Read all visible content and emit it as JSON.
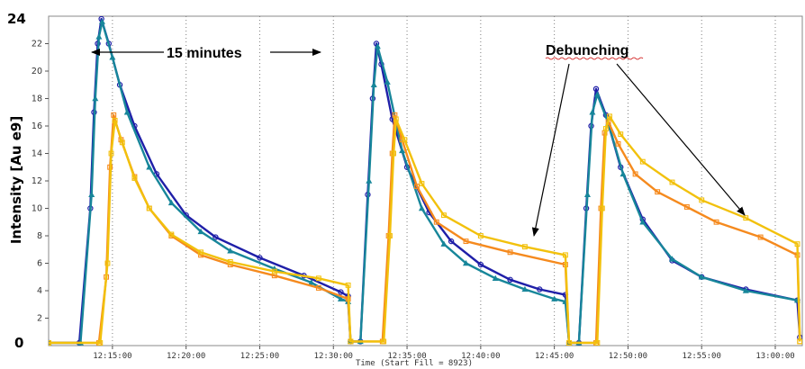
{
  "chart_data": {
    "type": "line",
    "title": "",
    "xlabel": "Time (Start Fill = 8923)",
    "ylabel": "Intensity [Au e9]",
    "x_tick_labels": [
      "12:15:00",
      "12:20:00",
      "12:25:00",
      "12:30:00",
      "12:35:00",
      "12:40:00",
      "12:45:00",
      "12:50:00",
      "12:55:00",
      "13:00:00"
    ],
    "y_tick_labels": [
      "2",
      "4",
      "6",
      "8",
      "10",
      "12",
      "14",
      "16",
      "18",
      "20",
      "22"
    ],
    "y_end_labels": {
      "bottom": "0",
      "top": "24"
    },
    "xlim": [
      "12:10:40",
      "13:01:50"
    ],
    "ylim": [
      0,
      24
    ],
    "grid": {
      "x": true,
      "y": false
    },
    "annotations": {
      "interval": "15 minutes",
      "debunching": "Debunching"
    },
    "colors": {
      "navy": "#1f1fa8",
      "teal": "#17869a",
      "orange": "#f58a1e",
      "yellow": "#f2c10c"
    },
    "series": [
      {
        "color": "#1f1fa8",
        "marker": "circle",
        "points": [
          [
            "12:10:40",
            0.2
          ],
          [
            "12:12:45",
            0.2
          ],
          [
            "12:13:30",
            10
          ],
          [
            "12:13:45",
            17
          ],
          [
            "12:14:00",
            22
          ],
          [
            "12:14:15",
            23.8
          ],
          [
            "12:14:45",
            22
          ],
          [
            "12:15:30",
            19
          ],
          [
            "12:16:30",
            16
          ],
          [
            "12:18:00",
            12.5
          ],
          [
            "12:20:00",
            9.5
          ],
          [
            "12:22:00",
            7.9
          ],
          [
            "12:25:00",
            6.4
          ],
          [
            "12:28:00",
            5.1
          ],
          [
            "12:30:30",
            3.9
          ],
          [
            "12:31:00",
            3.6
          ],
          [
            "12:31:10",
            0.3
          ],
          [
            "12:31:50",
            0.3
          ],
          [
            "12:32:20",
            11
          ],
          [
            "12:32:40",
            18
          ],
          [
            "12:32:55",
            22
          ],
          [
            "12:33:15",
            20.5
          ],
          [
            "12:34:00",
            16.5
          ],
          [
            "12:35:00",
            13
          ],
          [
            "12:36:30",
            9.7
          ],
          [
            "12:38:00",
            7.6
          ],
          [
            "12:40:00",
            5.9
          ],
          [
            "12:42:00",
            4.8
          ],
          [
            "12:44:00",
            4.1
          ],
          [
            "12:45:45",
            3.7
          ],
          [
            "12:46:00",
            0.2
          ],
          [
            "12:46:40",
            0.2
          ],
          [
            "12:47:10",
            10
          ],
          [
            "12:47:30",
            16
          ],
          [
            "12:47:50",
            18.7
          ],
          [
            "12:48:30",
            16.8
          ],
          [
            "12:49:30",
            13
          ],
          [
            "12:51:00",
            9.2
          ],
          [
            "12:53:00",
            6.2
          ],
          [
            "12:55:00",
            5.0
          ],
          [
            "12:58:00",
            4.1
          ],
          [
            "13:01:30",
            3.3
          ],
          [
            "13:01:40",
            0.6
          ]
        ]
      },
      {
        "color": "#17869a",
        "marker": "triangle",
        "points": [
          [
            "12:10:40",
            0.2
          ],
          [
            "12:12:50",
            0.2
          ],
          [
            "12:13:35",
            11
          ],
          [
            "12:13:50",
            18
          ],
          [
            "12:14:05",
            22.5
          ],
          [
            "12:14:18",
            23.6
          ],
          [
            "12:15:00",
            21
          ],
          [
            "12:16:00",
            17
          ],
          [
            "12:17:30",
            13
          ],
          [
            "12:19:00",
            10.4
          ],
          [
            "12:21:00",
            8.3
          ],
          [
            "12:23:00",
            6.9
          ],
          [
            "12:26:00",
            5.6
          ],
          [
            "12:28:30",
            4.6
          ],
          [
            "12:30:30",
            3.4
          ],
          [
            "12:31:00",
            3.2
          ],
          [
            "12:31:10",
            0.3
          ],
          [
            "12:31:50",
            0.3
          ],
          [
            "12:32:25",
            12
          ],
          [
            "12:32:45",
            19
          ],
          [
            "12:33:00",
            21.8
          ],
          [
            "12:33:40",
            19.2
          ],
          [
            "12:34:40",
            14.2
          ],
          [
            "12:36:00",
            10
          ],
          [
            "12:37:30",
            7.4
          ],
          [
            "12:39:00",
            6.0
          ],
          [
            "12:41:00",
            4.9
          ],
          [
            "12:43:00",
            4.1
          ],
          [
            "12:45:00",
            3.4
          ],
          [
            "12:45:45",
            3.2
          ],
          [
            "12:46:00",
            0.2
          ],
          [
            "12:46:40",
            0.2
          ],
          [
            "12:47:15",
            11
          ],
          [
            "12:47:35",
            17
          ],
          [
            "12:47:55",
            18.3
          ],
          [
            "12:48:40",
            16.2
          ],
          [
            "12:49:40",
            12.5
          ],
          [
            "12:51:00",
            9.0
          ],
          [
            "12:53:00",
            6.3
          ],
          [
            "12:55:00",
            5.0
          ],
          [
            "12:58:00",
            4.0
          ],
          [
            "13:01:30",
            3.3
          ]
        ]
      },
      {
        "color": "#f58a1e",
        "marker": "square",
        "points": [
          [
            "12:10:40",
            0.2
          ],
          [
            "12:14:05",
            0.2
          ],
          [
            "12:14:35",
            5
          ],
          [
            "12:14:50",
            13
          ],
          [
            "12:15:05",
            16.8
          ],
          [
            "12:15:35",
            15
          ],
          [
            "12:16:30",
            12.3
          ],
          [
            "12:17:30",
            10
          ],
          [
            "12:19:00",
            8.0
          ],
          [
            "12:21:00",
            6.6
          ],
          [
            "12:23:00",
            5.9
          ],
          [
            "12:26:00",
            5.1
          ],
          [
            "12:29:00",
            4.2
          ],
          [
            "12:31:00",
            3.4
          ],
          [
            "12:31:10",
            0.3
          ],
          [
            "12:33:20",
            0.3
          ],
          [
            "12:33:45",
            8
          ],
          [
            "12:34:00",
            14
          ],
          [
            "12:34:10",
            16.8
          ],
          [
            "12:34:40",
            15
          ],
          [
            "12:35:40",
            11.6
          ],
          [
            "12:37:00",
            9.0
          ],
          [
            "12:39:00",
            7.6
          ],
          [
            "12:42:00",
            6.8
          ],
          [
            "12:45:45",
            5.9
          ],
          [
            "12:46:00",
            0.2
          ],
          [
            "12:47:50",
            0.2
          ],
          [
            "12:48:10",
            10
          ],
          [
            "12:48:25",
            15.5
          ],
          [
            "12:48:40",
            16.3
          ],
          [
            "12:49:20",
            14.7
          ],
          [
            "12:50:30",
            12.5
          ],
          [
            "12:52:00",
            11.2
          ],
          [
            "12:54:00",
            10.1
          ],
          [
            "12:56:00",
            9.0
          ],
          [
            "12:59:00",
            7.9
          ],
          [
            "13:01:30",
            6.6
          ],
          [
            "13:01:40",
            0.3
          ]
        ]
      },
      {
        "color": "#f2c10c",
        "marker": "square",
        "points": [
          [
            "12:10:40",
            0.2
          ],
          [
            "12:14:10",
            0.2
          ],
          [
            "12:14:40",
            6
          ],
          [
            "12:14:55",
            14
          ],
          [
            "12:15:10",
            16.4
          ],
          [
            "12:15:40",
            14.8
          ],
          [
            "12:16:30",
            12.2
          ],
          [
            "12:17:30",
            10
          ],
          [
            "12:19:00",
            8.1
          ],
          [
            "12:21:00",
            6.8
          ],
          [
            "12:23:00",
            6.1
          ],
          [
            "12:26:00",
            5.4
          ],
          [
            "12:29:00",
            4.9
          ],
          [
            "12:31:00",
            4.4
          ],
          [
            "12:31:10",
            0.3
          ],
          [
            "12:33:25",
            0.3
          ],
          [
            "12:33:50",
            8
          ],
          [
            "12:34:05",
            14
          ],
          [
            "12:34:15",
            16.5
          ],
          [
            "12:34:50",
            15
          ],
          [
            "12:36:00",
            11.8
          ],
          [
            "12:37:30",
            9.5
          ],
          [
            "12:40:00",
            8.0
          ],
          [
            "12:43:00",
            7.2
          ],
          [
            "12:45:45",
            6.6
          ],
          [
            "12:46:00",
            0.2
          ],
          [
            "12:47:55",
            0.2
          ],
          [
            "12:48:15",
            10
          ],
          [
            "12:48:30",
            15.8
          ],
          [
            "12:48:45",
            16.7
          ],
          [
            "12:49:30",
            15.4
          ],
          [
            "12:51:00",
            13.4
          ],
          [
            "12:53:00",
            11.9
          ],
          [
            "12:55:00",
            10.6
          ],
          [
            "12:58:00",
            9.3
          ],
          [
            "13:01:30",
            7.4
          ],
          [
            "13:01:40",
            0.3
          ]
        ]
      }
    ]
  }
}
